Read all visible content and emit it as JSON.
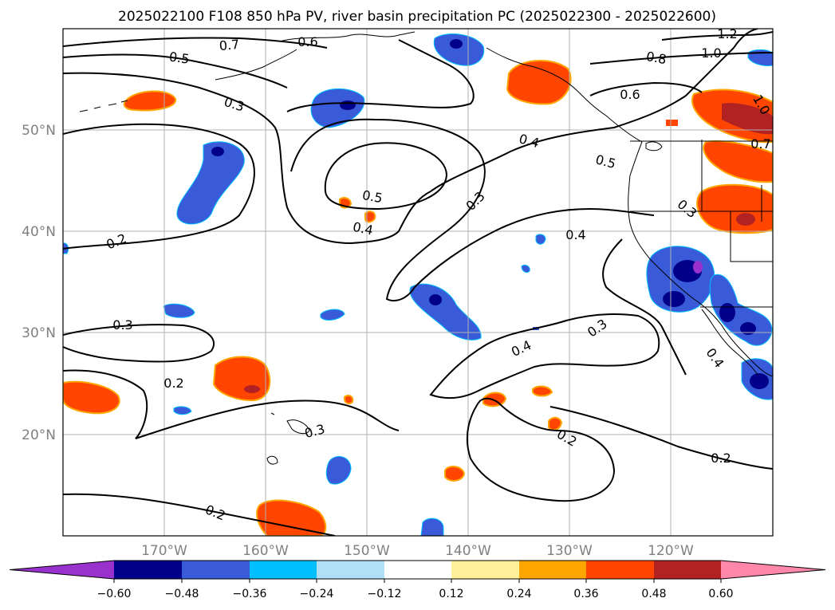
{
  "title": "2025022100 F108 850 hPa PV, river basin precipitation PC (2025022300 - 2025022600)",
  "lat_labels": [
    "50°N",
    "40°N",
    "30°N",
    "20°N"
  ],
  "lon_labels": [
    "170°W",
    "160°W",
    "150°W",
    "140°W",
    "130°W",
    "120°W"
  ],
  "contour_labels": [
    "0.7",
    "0.6",
    "0.5",
    "0.3",
    "1.2",
    "1.0",
    "0.8",
    "0.6",
    "0.4",
    "0.5",
    "0.5",
    "0.4",
    "0.3",
    "0.3",
    "0.2",
    "0.4",
    "0.3",
    "0.3",
    "0.4",
    "0.2",
    "0.4",
    "0.2",
    "0.3",
    "0.2",
    "0.2",
    "1.0",
    "0.7"
  ],
  "colorbar": {
    "ticks": [
      "−0.60",
      "−0.48",
      "−0.36",
      "−0.24",
      "−0.12",
      "0.12",
      "0.24",
      "0.36",
      "0.48",
      "0.60"
    ],
    "colors": [
      "#9932cc",
      "#00008b",
      "#3a5bd9",
      "#00bfff",
      "#b0e0f8",
      "#ffffff",
      "#fff09a",
      "#ffa500",
      "#ff4500",
      "#b22222",
      "#ff88aa"
    ]
  }
}
